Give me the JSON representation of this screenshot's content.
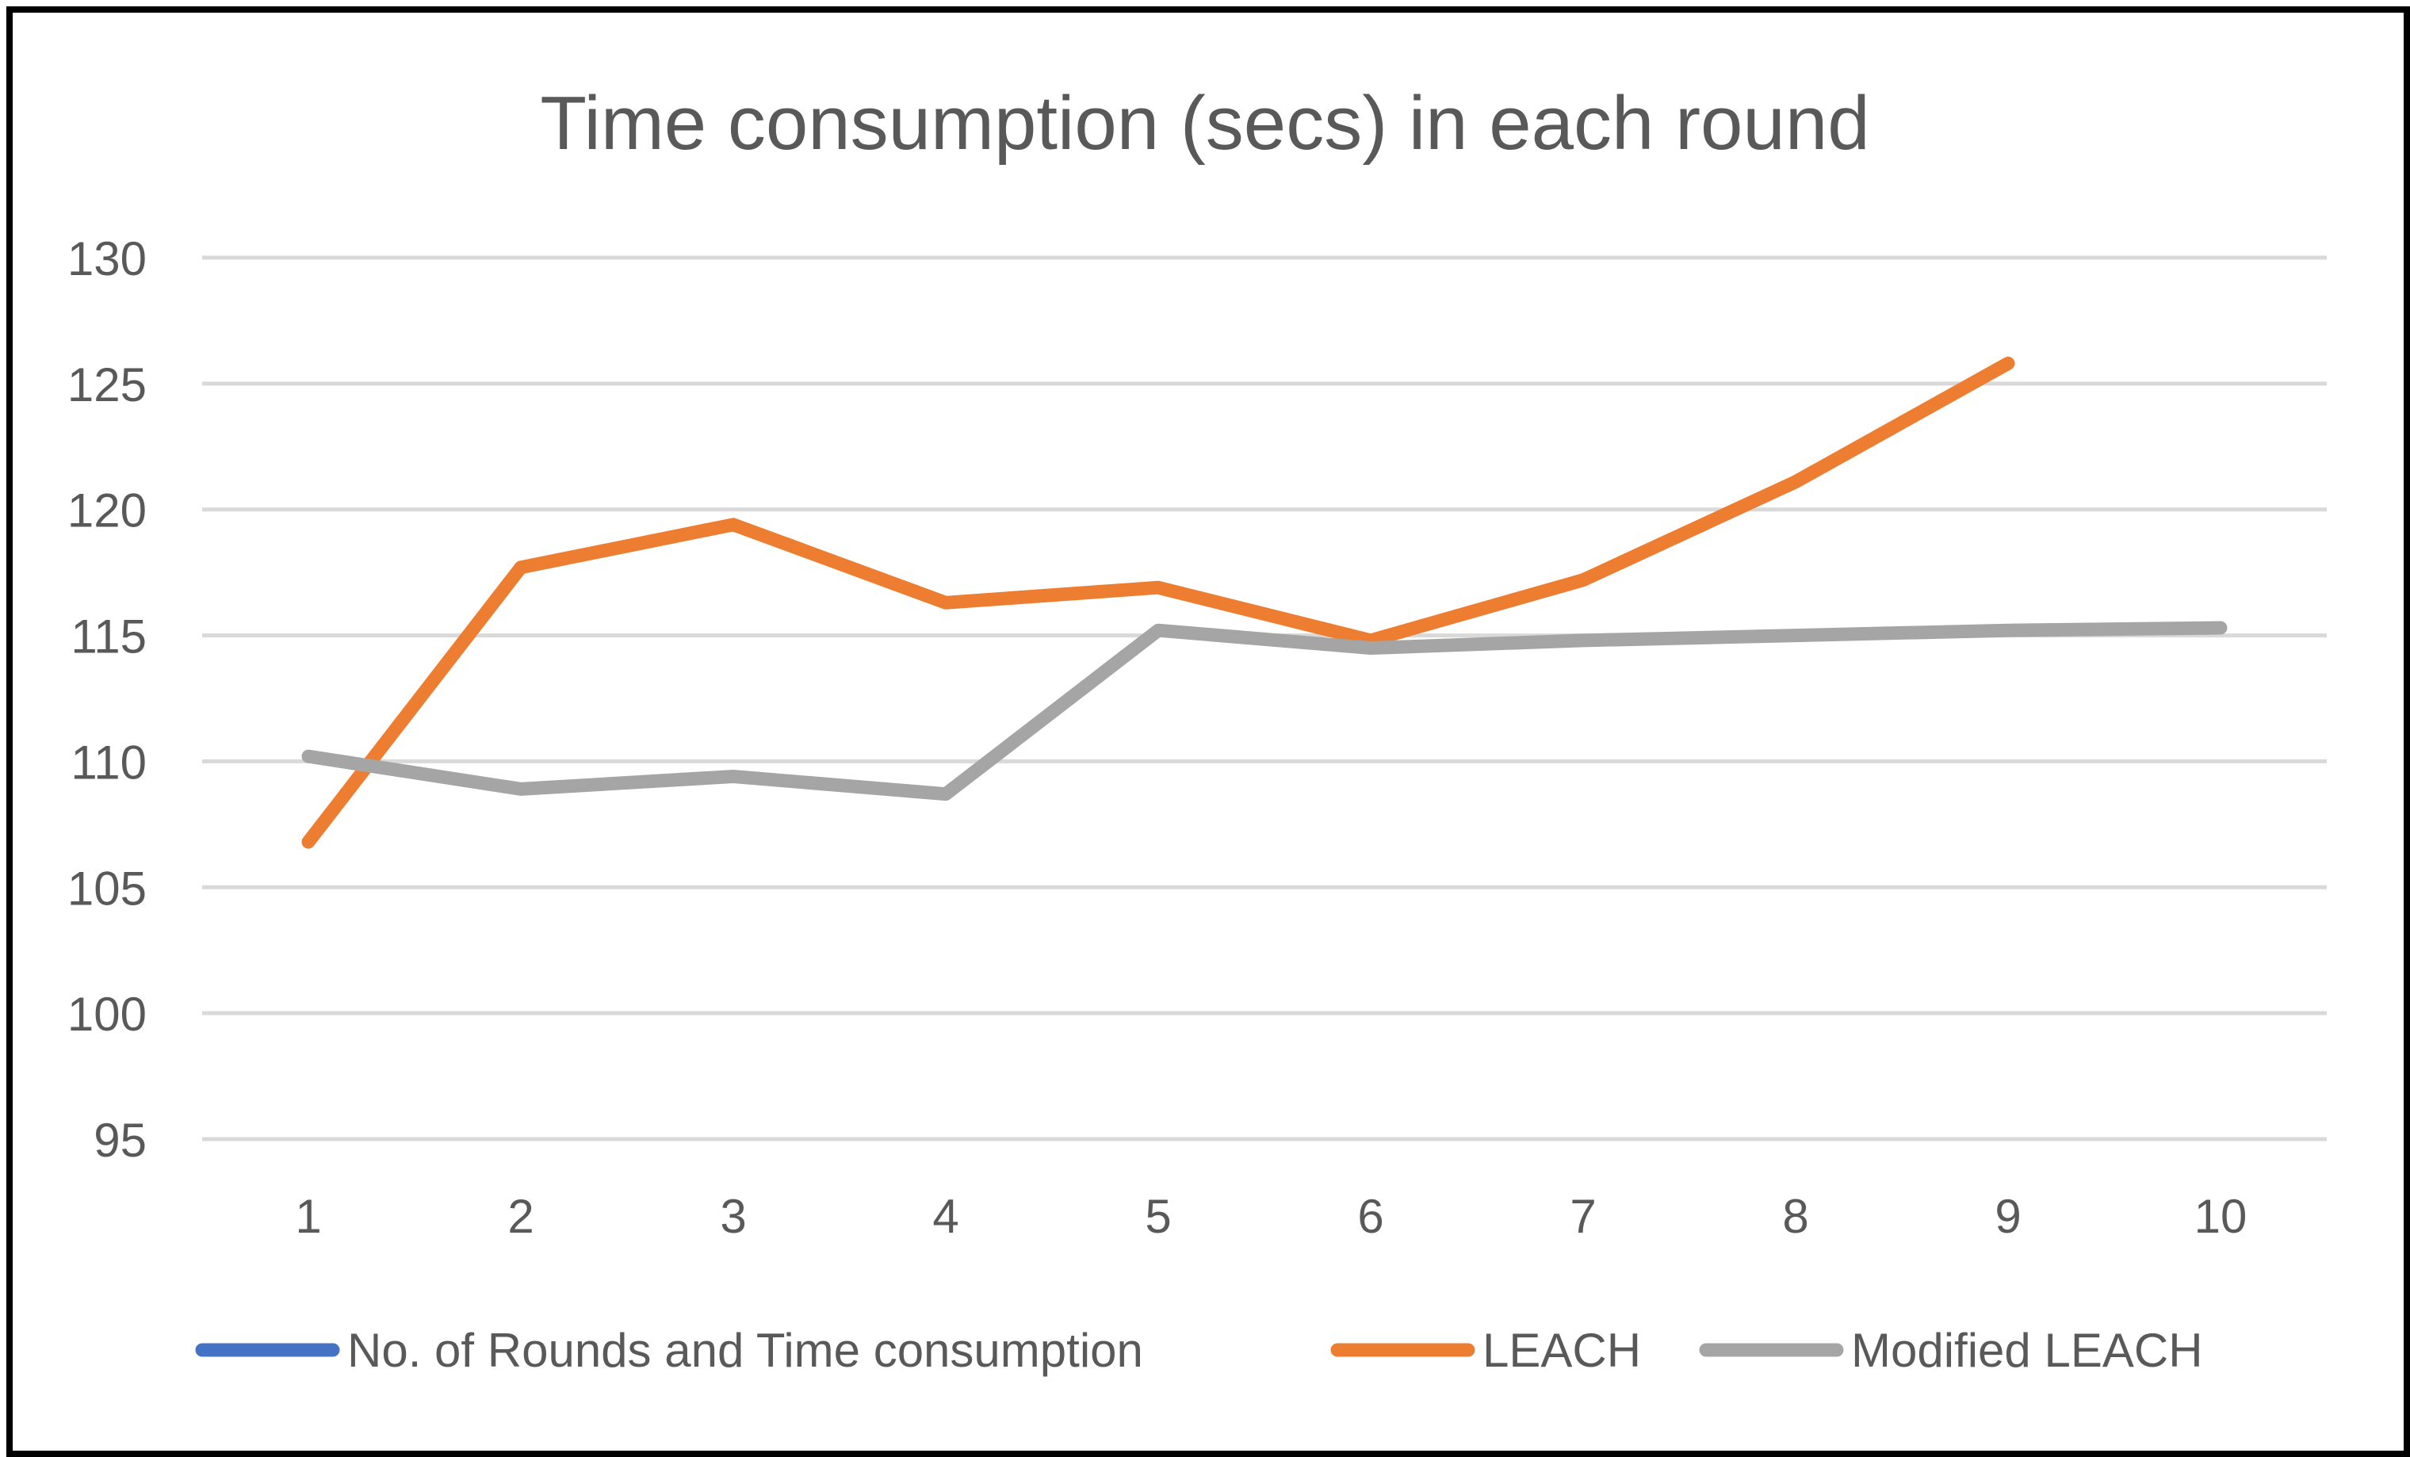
{
  "chart_data": {
    "type": "line",
    "title": "Time consumption (secs) in each round",
    "xlabel": "",
    "ylabel": "",
    "categories": [
      "1",
      "2",
      "3",
      "4",
      "5",
      "6",
      "7",
      "8",
      "9",
      "10"
    ],
    "ylim": [
      95,
      130
    ],
    "yticks": [
      "95",
      "100",
      "105",
      "110",
      "115",
      "120",
      "125",
      "130"
    ],
    "grid": true,
    "legend_position": "bottom",
    "series": [
      {
        "name": "No. of Rounds and Time consumption",
        "color": "#4472C4",
        "values": [
          null,
          null,
          null,
          null,
          null,
          null,
          null,
          null,
          null,
          null
        ]
      },
      {
        "name": "LEACH",
        "color": "#ED7D31",
        "values": [
          106.8,
          117.7,
          119.4,
          116.3,
          116.9,
          114.8,
          117.2,
          121.1,
          125.8,
          null
        ]
      },
      {
        "name": "Modified LEACH",
        "color": "#A5A5A5",
        "values": [
          110.2,
          108.9,
          109.4,
          108.7,
          115.2,
          114.5,
          114.8,
          115.0,
          115.2,
          115.3
        ]
      }
    ]
  }
}
